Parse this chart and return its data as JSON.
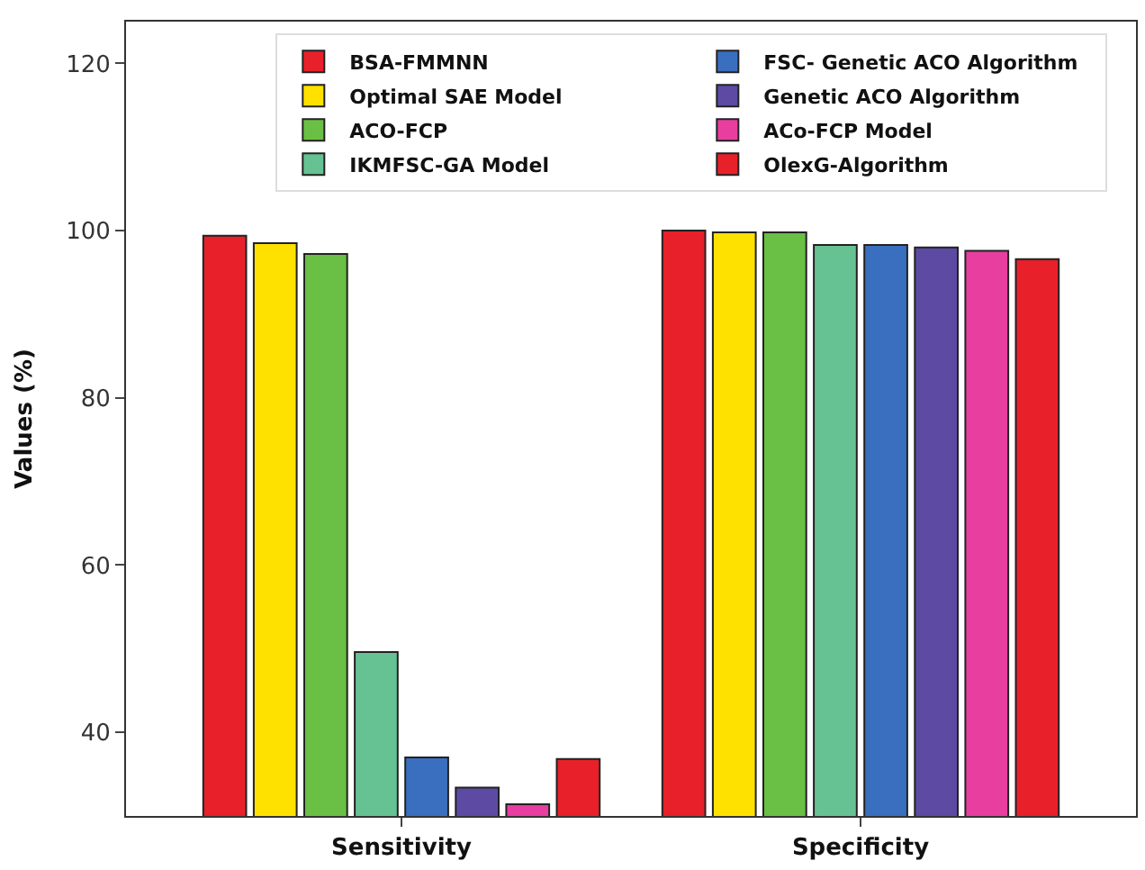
{
  "chart_data": {
    "type": "bar",
    "ylabel": "Values (%)",
    "categories": [
      "Sensitivity",
      "Specificity"
    ],
    "series": [
      {
        "name": "BSA-FMMNN",
        "color": "#e8202a",
        "values": [
          99.4,
          100.0
        ]
      },
      {
        "name": "Optimal SAE Model",
        "color": "#ffe100",
        "values": [
          98.5,
          99.8
        ]
      },
      {
        "name": "ACO-FCP",
        "color": "#6abf45",
        "values": [
          97.2,
          99.8
        ]
      },
      {
        "name": "IKMFSC-GA Model",
        "color": "#66c293",
        "values": [
          49.6,
          98.3
        ]
      },
      {
        "name": "FSC- Genetic ACO Algorithm",
        "color": "#3a6fbf",
        "values": [
          37.0,
          98.3
        ]
      },
      {
        "name": "Genetic ACO Algorithm",
        "color": "#5c4aa3",
        "values": [
          33.4,
          98.0
        ]
      },
      {
        "name": "ACo-FCP Model",
        "color": "#e83ea0",
        "values": [
          31.4,
          97.6
        ]
      },
      {
        "name": "OlexG-Algorithm",
        "color": "#e8202a",
        "values": [
          36.8,
          96.6
        ]
      }
    ],
    "ylim": [
      30,
      125
    ],
    "yticks": [
      40,
      60,
      80,
      100,
      120
    ],
    "legend": "top"
  }
}
